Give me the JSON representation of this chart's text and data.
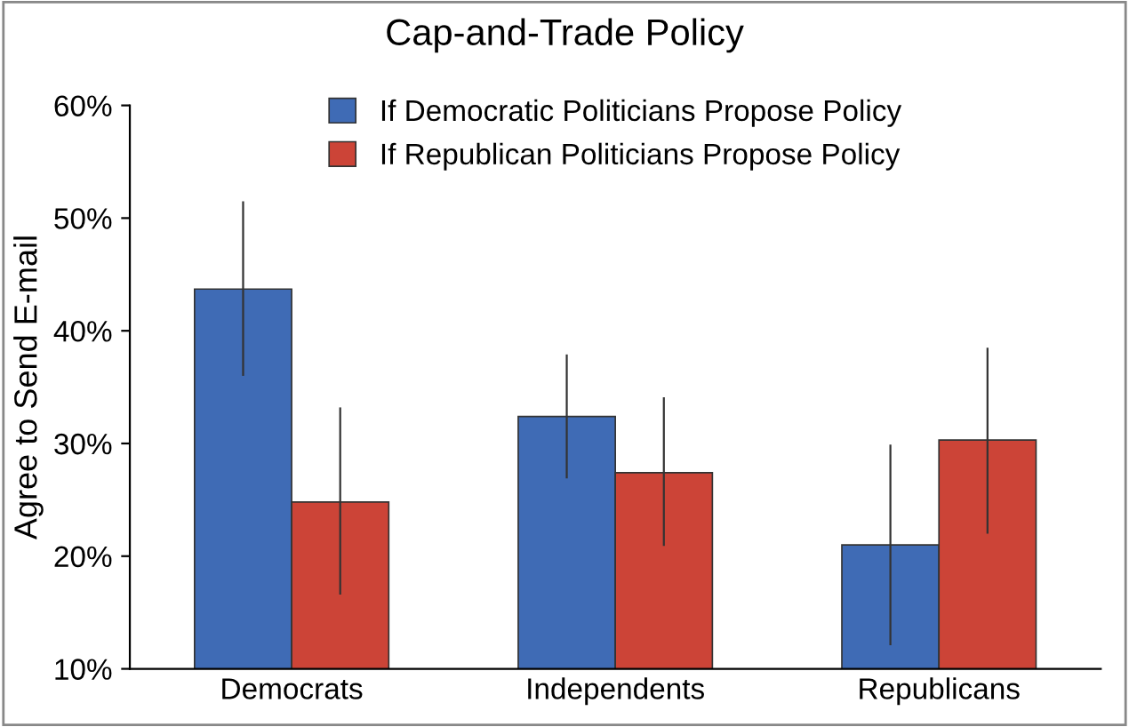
{
  "chart_data": {
    "type": "bar",
    "title": "Cap-and-Trade Policy",
    "ylabel": "Agree to Send E-mail",
    "categories": [
      "Democrats",
      "Independents",
      "Republicans"
    ],
    "series": [
      {
        "name": "If Democratic Politicians Propose Policy",
        "color": "#3f6bb5",
        "values": [
          43.7,
          32.4,
          21.0
        ],
        "errors": [
          [
            36.0,
            51.5
          ],
          [
            26.9,
            37.9
          ],
          [
            12.1,
            29.9
          ]
        ]
      },
      {
        "name": "If Republican Politicians Propose Policy",
        "color": "#cc4437",
        "values": [
          24.8,
          27.4,
          30.3
        ],
        "errors": [
          [
            16.6,
            33.2
          ],
          [
            20.9,
            34.1
          ],
          [
            22.0,
            38.5
          ]
        ]
      }
    ],
    "ylim": [
      10,
      60
    ],
    "yticks": [
      {
        "value": 10,
        "label": "10%"
      },
      {
        "value": 20,
        "label": "20%"
      },
      {
        "value": 30,
        "label": "30%"
      },
      {
        "value": 40,
        "label": "40%"
      },
      {
        "value": 50,
        "label": "50%"
      },
      {
        "value": 60,
        "label": "60%"
      }
    ],
    "grid": false,
    "legend": "top"
  }
}
